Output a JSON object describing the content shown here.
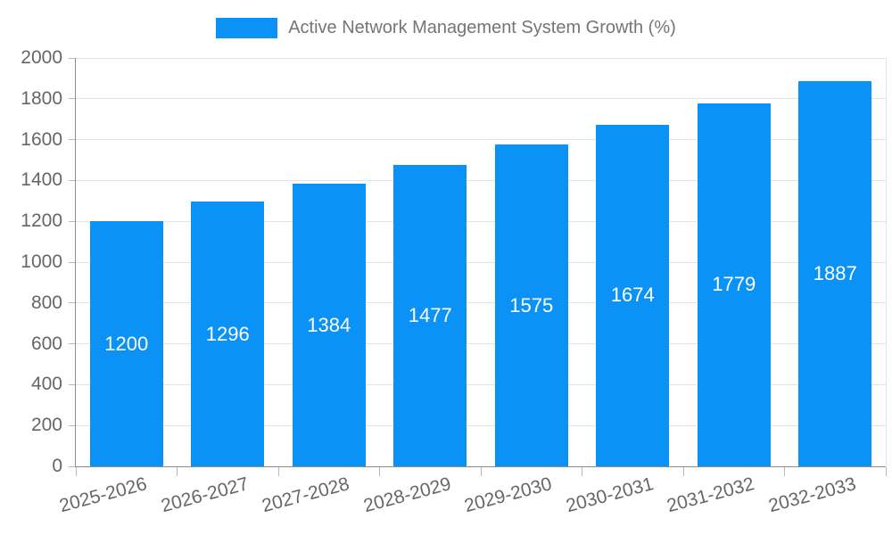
{
  "legend": {
    "label": "Active Network Management System Growth (%)"
  },
  "chart_data": {
    "type": "bar",
    "title": "",
    "series_name": "Active Network Management System Growth (%)",
    "categories": [
      "2025-2026",
      "2026-2027",
      "2027-2028",
      "2028-2029",
      "2029-2030",
      "2030-2031",
      "2031-2032",
      "2032-2033"
    ],
    "values": [
      1200,
      1296,
      1384,
      1477,
      1575,
      1674,
      1779,
      1887
    ],
    "xlabel": "",
    "ylabel": "",
    "ylim": [
      0,
      2000
    ],
    "ytick_step": 200,
    "yticks": [
      0,
      200,
      400,
      600,
      800,
      1000,
      1200,
      1400,
      1600,
      1800,
      2000
    ],
    "grid": true,
    "legend_position": "top-center",
    "bar_label_position": "inside-center",
    "x_label_rotation_deg": 15
  },
  "style": {
    "bar_color": "#0b92f6",
    "bar_label_color": "#ffffff",
    "grid_color": "#e4e4e4",
    "axis_line_color": "#8c8c8c",
    "tick_color": "#bbbbbb",
    "axis_text_color": "#666666",
    "legend_text_color": "#757575",
    "background_color": "#ffffff"
  }
}
